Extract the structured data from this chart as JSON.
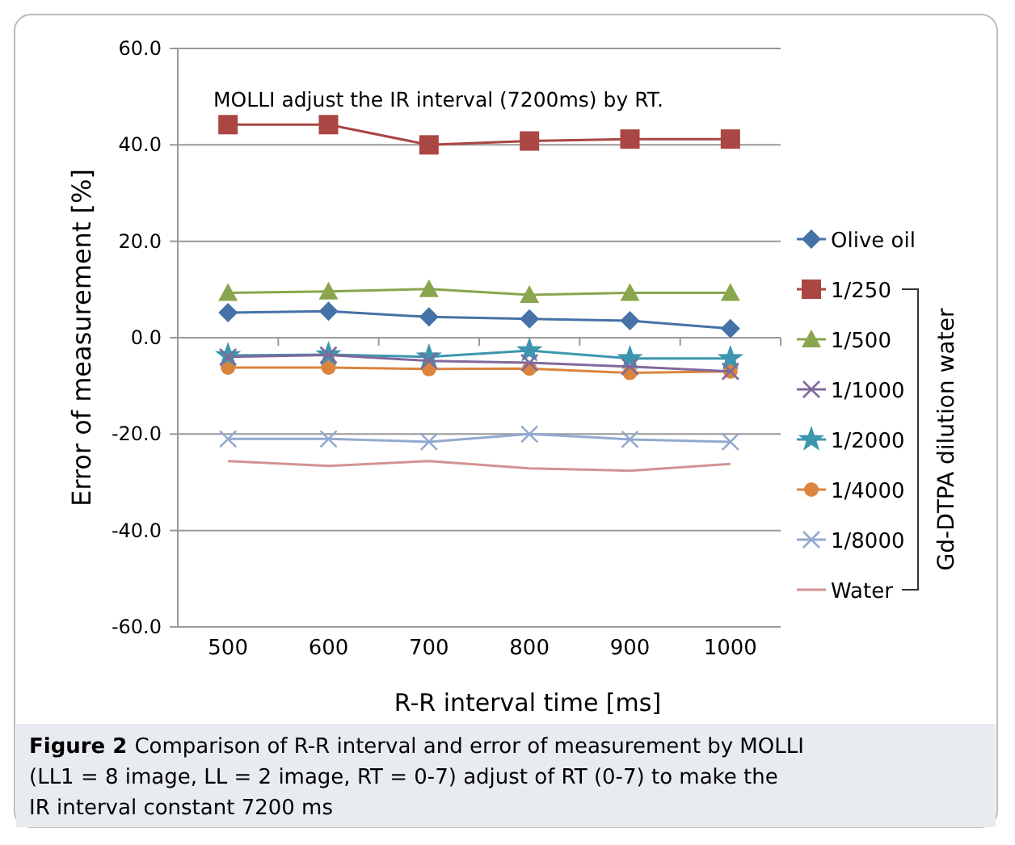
{
  "chart_data": {
    "type": "line",
    "xlabel": "R-R interval time  [ms]",
    "ylabel": "Error of measurement  [%]",
    "categories": [
      "500",
      "600",
      "700",
      "800",
      "900",
      "1000"
    ],
    "series": [
      {
        "name": "Olive oil",
        "color": "#4572a7",
        "marker": "diamond",
        "values": [
          5.2,
          5.5,
          4.3,
          3.9,
          3.5,
          1.9
        ]
      },
      {
        "name": "1/250",
        "color": "#aa4643",
        "marker": "square",
        "values": [
          44.2,
          44.2,
          40.0,
          40.8,
          41.2,
          41.2
        ]
      },
      {
        "name": "1/500",
        "color": "#89a54e",
        "marker": "triangle",
        "values": [
          9.3,
          9.6,
          10.1,
          8.9,
          9.3,
          9.3
        ]
      },
      {
        "name": "1/1000",
        "color": "#80699b",
        "marker": "cross",
        "values": [
          -4.0,
          -3.6,
          -4.8,
          -5.2,
          -6.0,
          -7.0
        ]
      },
      {
        "name": "1/2000",
        "color": "#3d96ae",
        "marker": "star",
        "values": [
          -3.7,
          -3.5,
          -4.0,
          -2.7,
          -4.3,
          -4.3
        ]
      },
      {
        "name": "1/4000",
        "color": "#db843d",
        "marker": "circle",
        "values": [
          -6.2,
          -6.2,
          -6.5,
          -6.4,
          -7.3,
          -7.0
        ]
      },
      {
        "name": "1/8000",
        "color": "#93a9cf",
        "marker": "cross",
        "values": [
          -21.0,
          -21.0,
          -21.6,
          -20.0,
          -21.1,
          -21.6
        ]
      },
      {
        "name": "Water",
        "color": "#d19392",
        "marker": "none",
        "values": [
          -25.6,
          -26.6,
          -25.6,
          -27.1,
          -27.6,
          -26.2
        ]
      }
    ],
    "ylim": [
      -60,
      60
    ],
    "yticks": [
      {
        "value": -60,
        "label": "-60.0"
      },
      {
        "value": -40,
        "label": "-40.0"
      },
      {
        "value": -20,
        "label": "-20.0"
      },
      {
        "value": 0,
        "label": "0.0"
      },
      {
        "value": 20,
        "label": "20.0"
      },
      {
        "value": 40,
        "label": "40.0"
      },
      {
        "value": 60,
        "label": "60.0"
      }
    ],
    "grid": "y",
    "legend": "right",
    "line_style": "solid",
    "annotations": [
      "MOLLI adjust the IR interval (7200ms) by RT.",
      "Gd-DTPA dilution water",
      "Figure 2",
      "Comparison of R-R interval and error of measurement by MOLLI (LL1 = 8 image, LL = 2 image, RT = 0-7) adjust of RT (0-7) to make the IR interval constant 7200 ms"
    ]
  }
}
